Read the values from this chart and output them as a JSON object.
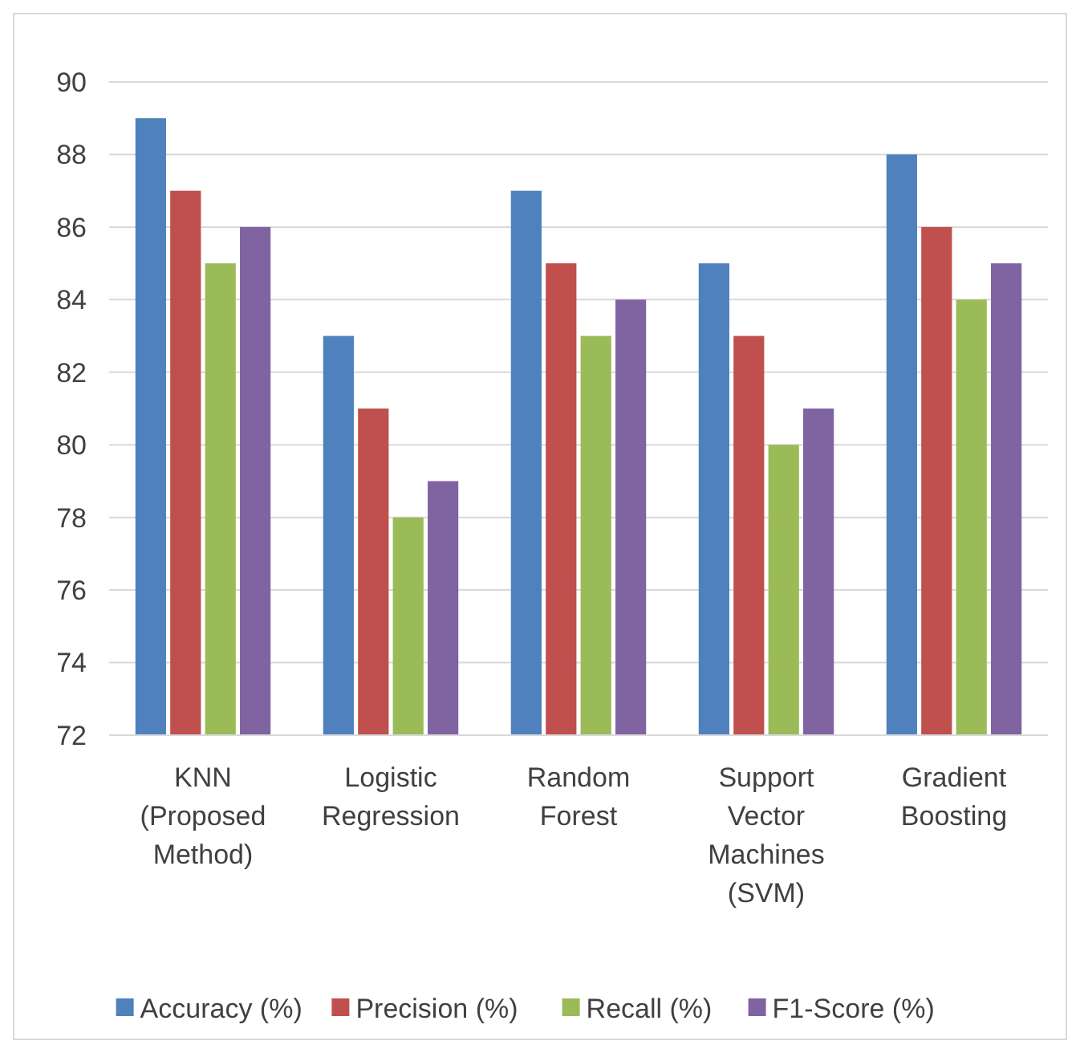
{
  "chart_data": {
    "type": "bar",
    "categories": [
      "KNN (Proposed Method)",
      "Logistic Regression",
      "Random Forest",
      "Support Vector Machines (SVM)",
      "Gradient Boosting"
    ],
    "series": [
      {
        "name": "Accuracy (%)",
        "color": "#4f81bd",
        "values": [
          89,
          83,
          87,
          85,
          88
        ]
      },
      {
        "name": "Precision (%)",
        "color": "#c0504d",
        "values": [
          87,
          81,
          85,
          83,
          86
        ]
      },
      {
        "name": "Recall (%)",
        "color": "#9bbb59",
        "values": [
          85,
          78,
          83,
          80,
          84
        ]
      },
      {
        "name": "F1-Score (%)",
        "color": "#8064a2",
        "values": [
          86,
          79,
          84,
          81,
          85
        ]
      }
    ],
    "ylim": [
      72,
      90
    ],
    "yticks": [
      72,
      74,
      76,
      78,
      80,
      82,
      84,
      86,
      88,
      90
    ],
    "grid": "y",
    "legend": "bottom"
  }
}
